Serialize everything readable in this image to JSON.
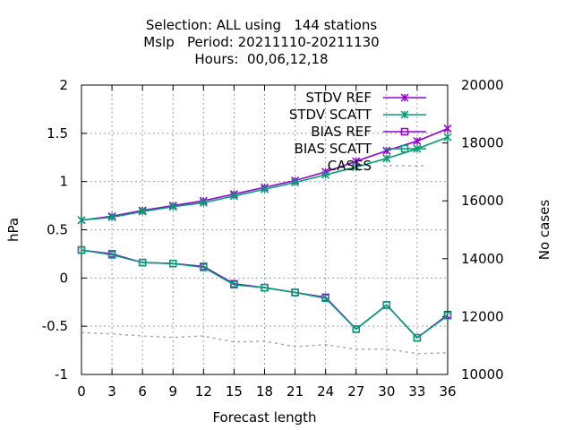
{
  "chart_data": {
    "type": "line",
    "title_lines": [
      "Selection: ALL using   144 stations",
      "Mslp   Period: 20211110-20211130",
      "Hours:  00,06,12,18"
    ],
    "xlabel": "Forecast length",
    "ylabel": "hPa",
    "y2label": "No cases",
    "x": [
      0,
      3,
      6,
      9,
      12,
      15,
      18,
      21,
      24,
      27,
      30,
      33,
      36
    ],
    "xlim": [
      0,
      36
    ],
    "xticks": [
      0,
      3,
      6,
      9,
      12,
      15,
      18,
      21,
      24,
      27,
      30,
      33,
      36
    ],
    "ylim": [
      -1,
      2
    ],
    "yticks": [
      -1,
      -0.5,
      0,
      0.5,
      1,
      1.5,
      2
    ],
    "ytick_labels": [
      "-1",
      "-0.5",
      "0",
      "0.5",
      "1",
      "1.5",
      "2"
    ],
    "y2lim": [
      10000,
      20000
    ],
    "y2ticks": [
      10000,
      12000,
      14000,
      16000,
      18000,
      20000
    ],
    "grid": true,
    "legend_position": "top-right",
    "series": [
      {
        "name": "STDV REF",
        "axis": "y",
        "color": "#9400d3",
        "marker": "x",
        "values": [
          0.6,
          0.64,
          0.7,
          0.75,
          0.8,
          0.87,
          0.94,
          1.01,
          1.1,
          1.21,
          1.32,
          1.42,
          1.55
        ]
      },
      {
        "name": "STDV SCATT",
        "axis": "y",
        "color": "#009e73",
        "marker": "x",
        "values": [
          0.6,
          0.63,
          0.69,
          0.74,
          0.78,
          0.85,
          0.92,
          0.99,
          1.07,
          1.15,
          1.24,
          1.34,
          1.46
        ]
      },
      {
        "name": "BIAS REF",
        "axis": "y",
        "color": "#9400d3",
        "marker": "square",
        "values": [
          0.29,
          0.25,
          0.16,
          0.15,
          0.12,
          -0.06,
          -0.1,
          -0.15,
          -0.2,
          -0.53,
          -0.28,
          -0.62,
          -0.38
        ]
      },
      {
        "name": "BIAS SCATT",
        "axis": "y",
        "color": "#009e73",
        "marker": "square",
        "values": [
          0.29,
          0.24,
          0.16,
          0.15,
          0.11,
          -0.07,
          -0.1,
          -0.15,
          -0.21,
          -0.53,
          -0.28,
          -0.62,
          -0.39
        ]
      },
      {
        "name": "CASES",
        "axis": "y2",
        "color": "#a0a0a0",
        "marker": "none",
        "dashed": true,
        "values": [
          11450,
          11400,
          11330,
          11280,
          11330,
          11120,
          11150,
          10960,
          11030,
          10870,
          10880,
          10720,
          10750
        ]
      }
    ]
  }
}
